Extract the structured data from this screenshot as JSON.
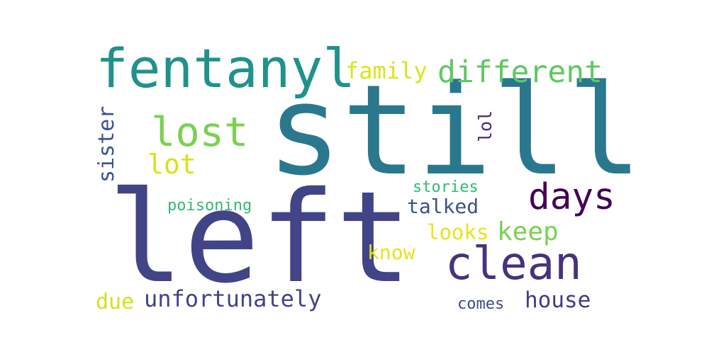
{
  "words": [
    {
      "text": "still",
      "color": "#2a788e"
    },
    {
      "text": "left",
      "color": "#414487"
    },
    {
      "text": "fentanyl",
      "color": "#21918c"
    },
    {
      "text": "different",
      "color": "#5ec962"
    },
    {
      "text": "family",
      "color": "#dde318"
    },
    {
      "text": "lost",
      "color": "#7ad151"
    },
    {
      "text": "lot",
      "color": "#d8e219"
    },
    {
      "text": "sister",
      "color": "#3b528b"
    },
    {
      "text": "lol",
      "color": "#482878"
    },
    {
      "text": "days",
      "color": "#440154"
    },
    {
      "text": "stories",
      "color": "#35b779"
    },
    {
      "text": "poisoning",
      "color": "#35b779"
    },
    {
      "text": "talked",
      "color": "#3b528b"
    },
    {
      "text": "keep",
      "color": "#7ad151"
    },
    {
      "text": "looks",
      "color": "#e8e419"
    },
    {
      "text": "clean",
      "color": "#46327e"
    },
    {
      "text": "know",
      "color": "#e5e419"
    },
    {
      "text": "due",
      "color": "#d2e21b"
    },
    {
      "text": "unfortunately",
      "color": "#414487"
    },
    {
      "text": "comes",
      "color": "#3e4a89"
    },
    {
      "text": "house",
      "color": "#443a83"
    }
  ]
}
